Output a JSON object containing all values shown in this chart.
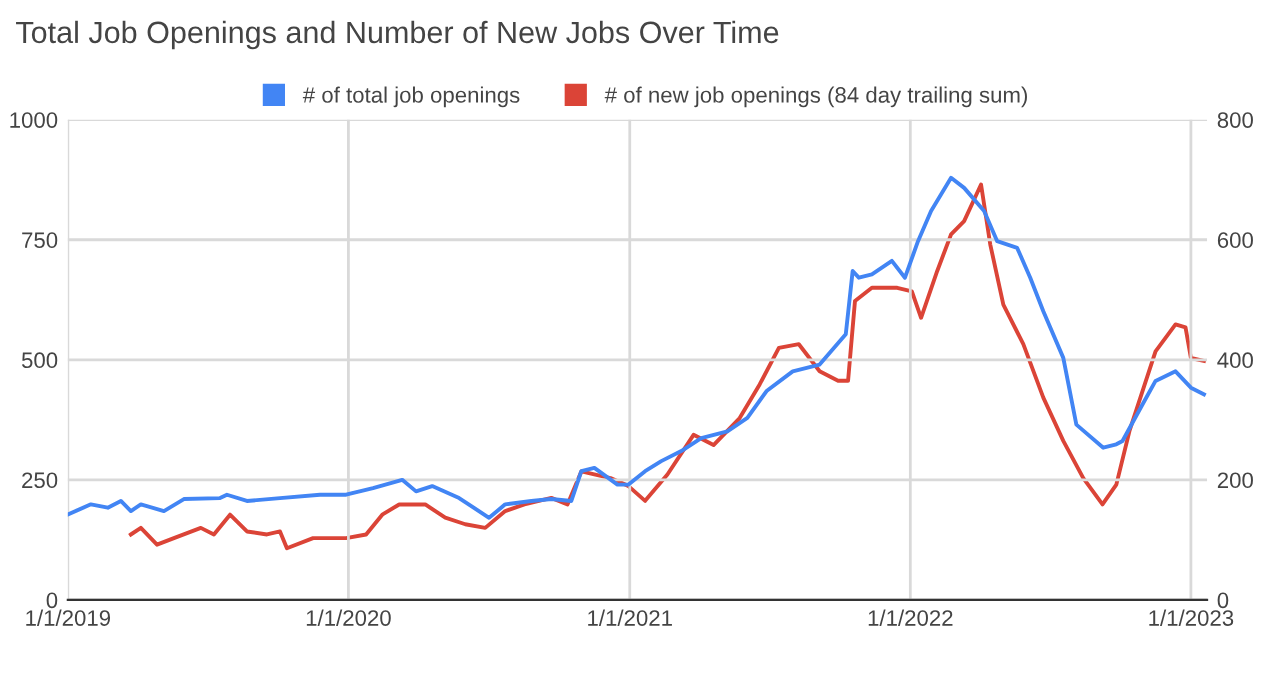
{
  "chart_data": {
    "type": "line",
    "title": "Total Job Openings and Number of New Jobs Over Time",
    "xlim": [
      "2019-01-01",
      "2023-01-22"
    ],
    "xticks": [
      {
        "value": "2019-01-01",
        "label": "1/1/2019"
      },
      {
        "value": "2020-01-01",
        "label": "1/1/2020"
      },
      {
        "value": "2021-01-01",
        "label": "1/1/2021"
      },
      {
        "value": "2022-01-01",
        "label": "1/1/2022"
      },
      {
        "value": "2023-01-01",
        "label": "1/1/2023"
      }
    ],
    "ylim": [
      0,
      1000
    ],
    "yticks": [
      0,
      250,
      500,
      750,
      1000
    ],
    "y2lim": [
      0,
      800
    ],
    "y2ticks": [
      0,
      200,
      400,
      600,
      800
    ],
    "grid": true,
    "legend": "top",
    "series": [
      {
        "name": "# of total job openings",
        "color": "#4285f4",
        "axis": "y",
        "x": [
          "2019-01-01",
          "2019-01-31",
          "2019-02-22",
          "2019-03-11",
          "2019-03-24",
          "2019-04-06",
          "2019-05-06",
          "2019-06-01",
          "2019-07-18",
          "2019-07-27",
          "2019-08-22",
          "2019-10-04",
          "2019-11-25",
          "2019-12-29",
          "2020-02-02",
          "2020-03-11",
          "2020-03-29",
          "2020-04-19",
          "2020-05-24",
          "2020-07-02",
          "2020-07-23",
          "2020-08-26",
          "2020-09-21",
          "2020-10-17",
          "2020-10-30",
          "2020-11-16",
          "2020-12-16",
          "2020-12-30",
          "2021-01-21",
          "2021-02-11",
          "2021-03-09",
          "2021-04-04",
          "2021-05-08",
          "2021-06-03",
          "2021-06-28",
          "2021-08-01",
          "2021-09-05",
          "2021-10-09",
          "2021-10-18",
          "2021-10-26",
          "2021-11-12",
          "2021-12-08",
          "2021-12-25",
          "2022-01-11",
          "2022-01-28",
          "2022-02-23",
          "2022-03-12",
          "2022-04-07",
          "2022-04-24",
          "2022-05-20",
          "2022-06-06",
          "2022-06-23",
          "2022-07-19",
          "2022-08-05",
          "2022-09-09",
          "2022-09-26",
          "2022-10-04",
          "2022-10-30",
          "2022-11-16",
          "2022-12-12",
          "2023-01-01",
          "2023-01-18"
        ],
        "values": [
          178,
          199,
          192,
          206,
          185,
          199,
          185,
          210,
          212,
          219,
          206,
          212,
          219,
          219,
          233,
          250,
          226,
          237,
          212,
          171,
          199,
          206,
          210,
          206,
          268,
          275,
          240,
          240,
          268,
          289,
          310,
          337,
          351,
          379,
          435,
          476,
          490,
          553,
          685,
          671,
          678,
          706,
          671,
          747,
          810,
          879,
          858,
          810,
          747,
          733,
          671,
          601,
          504,
          365,
          317,
          324,
          331,
          407,
          456,
          476,
          442,
          428
        ]
      },
      {
        "name": "# of new job openings (84 day trailing sum)",
        "color": "#db4437",
        "axis": "y2",
        "x": [
          "2019-03-24",
          "2019-04-06",
          "2019-04-27",
          "2019-05-19",
          "2019-06-23",
          "2019-07-10",
          "2019-07-31",
          "2019-08-22",
          "2019-09-17",
          "2019-10-04",
          "2019-10-13",
          "2019-11-16",
          "2019-12-29",
          "2020-01-24",
          "2020-02-14",
          "2020-03-07",
          "2020-04-10",
          "2020-05-06",
          "2020-06-01",
          "2020-06-27",
          "2020-07-23",
          "2020-08-17",
          "2020-09-21",
          "2020-10-12",
          "2020-10-30",
          "2020-12-07",
          "2020-12-30",
          "2021-01-21",
          "2021-02-19",
          "2021-03-25",
          "2021-04-20",
          "2021-05-24",
          "2021-06-19",
          "2021-07-14",
          "2021-08-09",
          "2021-09-05",
          "2021-09-29",
          "2021-10-12",
          "2021-10-21",
          "2021-11-12",
          "2021-12-15",
          "2022-01-03",
          "2022-01-15",
          "2022-02-05",
          "2022-02-23",
          "2022-03-12",
          "2022-04-03",
          "2022-04-15",
          "2022-05-02",
          "2022-05-28",
          "2022-06-23",
          "2022-07-19",
          "2022-08-14",
          "2022-09-08",
          "2022-09-26",
          "2022-10-13",
          "2022-11-16",
          "2022-12-12",
          "2022-12-25",
          "2023-01-01",
          "2023-01-18"
        ],
        "values": [
          109,
          120,
          92,
          103,
          120,
          109,
          142,
          114,
          109,
          114,
          86,
          103,
          103,
          109,
          142,
          159,
          159,
          137,
          126,
          120,
          148,
          159,
          170,
          159,
          214,
          203,
          190,
          165,
          209,
          275,
          258,
          303,
          359,
          420,
          426,
          381,
          365,
          365,
          498,
          520,
          520,
          514,
          470,
          548,
          609,
          631,
          692,
          592,
          492,
          426,
          337,
          265,
          203,
          159,
          192,
          281,
          414,
          459,
          454,
          403,
          398
        ]
      }
    ]
  }
}
